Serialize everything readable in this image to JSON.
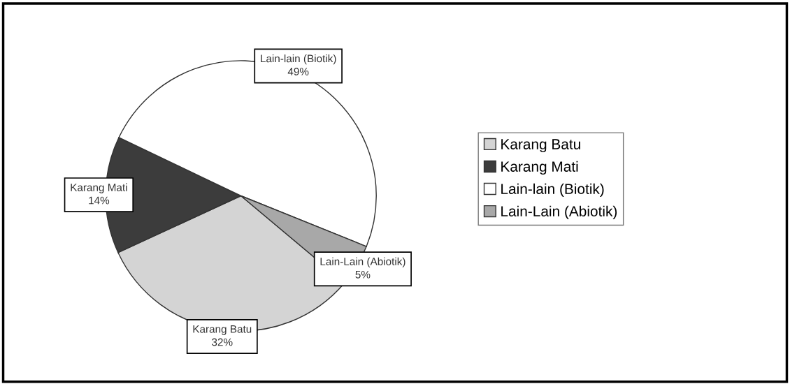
{
  "chart_data": {
    "type": "pie",
    "categories": [
      "Karang Batu",
      "Karang Mati",
      "Lain-lain (Biotik)",
      "Lain-Lain (Abiotik)"
    ],
    "values": [
      32,
      14,
      49,
      5
    ],
    "colors": [
      "#d4d4d4",
      "#3c3c3c",
      "#ffffff",
      "#a8a8a8"
    ],
    "value_labels": [
      "32%",
      "14%",
      "49%",
      "5%"
    ],
    "legend": "right"
  }
}
